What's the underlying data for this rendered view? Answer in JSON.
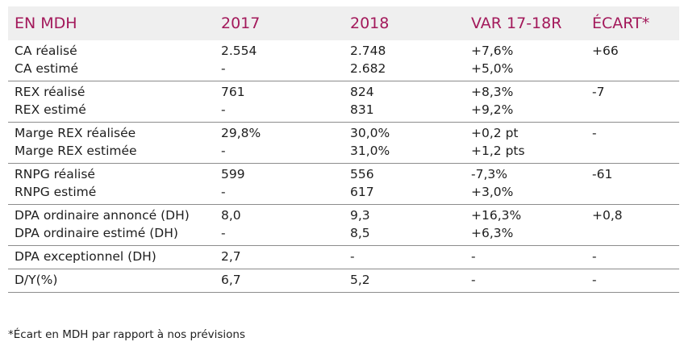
{
  "header": {
    "col1": "EN MDH",
    "col2": "2017",
    "col3": "2018",
    "col4": "VAR 17-18R",
    "col5": "ÉCART*"
  },
  "colors": {
    "header_text": "#a3195b",
    "header_bg": "#efefef",
    "rule": "#8c8c8c"
  },
  "groups": [
    {
      "rows": [
        {
          "label": "CA réalisé",
          "y2017": "2.554",
          "y2018": "2.748",
          "var": "+7,6%",
          "ecart": "+66"
        },
        {
          "label": "CA estimé",
          "y2017": "-",
          "y2018": "2.682",
          "var": "+5,0%",
          "ecart": ""
        }
      ]
    },
    {
      "rows": [
        {
          "label": "REX réalisé",
          "y2017": "761",
          "y2018": "824",
          "var": "+8,3%",
          "ecart": "-7"
        },
        {
          "label": "REX estimé",
          "y2017": "-",
          "y2018": "831",
          "var": "+9,2%",
          "ecart": ""
        }
      ]
    },
    {
      "rows": [
        {
          "label": "Marge REX réalisée",
          "y2017": "29,8%",
          "y2018": "30,0%",
          "var": "+0,2 pt",
          "ecart": "-"
        },
        {
          "label": "Marge REX estimée",
          "y2017": "-",
          "y2018": "31,0%",
          "var": "+1,2 pts",
          "ecart": ""
        }
      ]
    },
    {
      "rows": [
        {
          "label": "RNPG réalisé",
          "y2017": "599",
          "y2018": "556",
          "var": "-7,3%",
          "ecart": "-61"
        },
        {
          "label": "RNPG estimé",
          "y2017": "-",
          "y2018": "617",
          "var": "+3,0%",
          "ecart": ""
        }
      ]
    },
    {
      "rows": [
        {
          "label": "DPA ordinaire annoncé (DH)",
          "y2017": "8,0",
          "y2018": "9,3",
          "var": "+16,3%",
          "ecart": "+0,8"
        },
        {
          "label": "DPA ordinaire estimé (DH)",
          "y2017": "-",
          "y2018": "8,5",
          "var": "+6,3%",
          "ecart": ""
        }
      ]
    },
    {
      "rows": [
        {
          "label": "DPA exceptionnel (DH)",
          "y2017": "2,7",
          "y2018": "-",
          "var": "-",
          "ecart": "-"
        }
      ]
    },
    {
      "rows": [
        {
          "label": "D/Y(%)",
          "y2017": "6,7",
          "y2018": "5,2",
          "var": "-",
          "ecart": "-"
        }
      ]
    }
  ],
  "footnote": "*Écart en MDH par rapport à nos prévisions"
}
